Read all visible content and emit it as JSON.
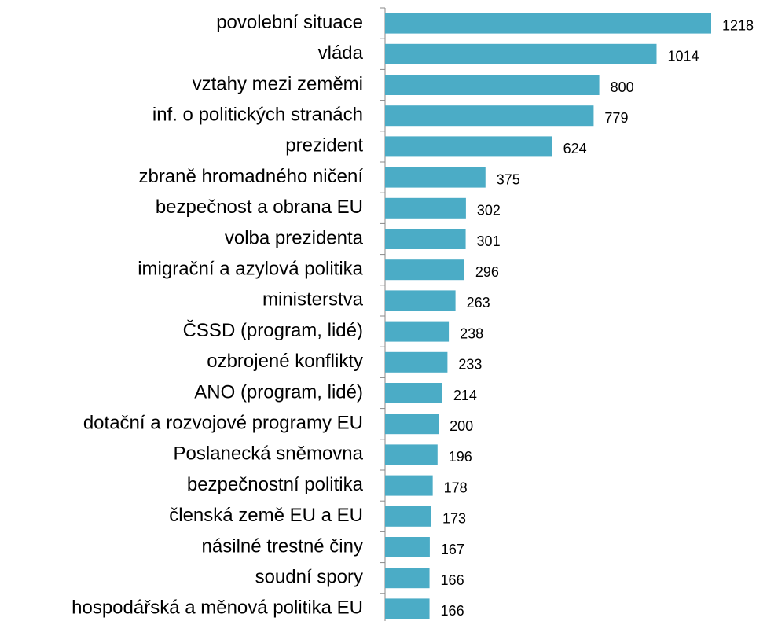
{
  "chart_data": {
    "type": "barh",
    "categories": [
      "povolební situace",
      "vláda",
      "vztahy mezi zeměmi",
      "inf. o politických stranách",
      "prezident",
      "zbraně hromadného ničení",
      "bezpečnost a obrana EU",
      "volba prezidenta",
      "imigrační a azylová politika",
      "ministerstva",
      "ČSSD (program, lidé)",
      "ozbrojené konflikty",
      "ANO (program, lidé)",
      "dotační a rozvojové programy EU",
      "Poslanecká sněmovna",
      "bezpečnostní politika",
      "členská země EU a EU",
      "násilné trestné činy",
      "soudní spory",
      "hospodářská a měnová politika EU"
    ],
    "values": [
      1218,
      1014,
      800,
      779,
      624,
      375,
      302,
      301,
      296,
      263,
      238,
      233,
      214,
      200,
      196,
      178,
      173,
      167,
      166,
      166
    ],
    "color": "#4bacc6"
  }
}
